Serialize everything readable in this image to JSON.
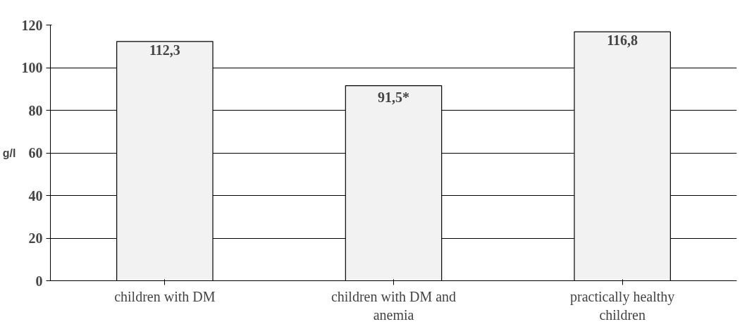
{
  "chart_data": {
    "type": "bar",
    "ylabel": "g/l",
    "categories": [
      "children with DM",
      "children with DM and anemia",
      "practically healthy children"
    ],
    "values": [
      112.3,
      91.5,
      116.8
    ],
    "value_labels": [
      "112,3",
      "91,5*",
      "116,8"
    ],
    "color": "#f2f2f2",
    "ylim": [
      0,
      120
    ],
    "yticks": [
      0,
      20,
      40,
      60,
      80,
      100,
      120
    ],
    "grid": "y"
  }
}
